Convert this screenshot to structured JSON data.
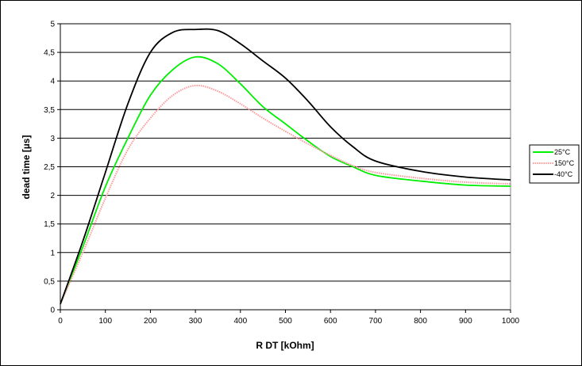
{
  "chart_data": {
    "type": "line",
    "title": "",
    "xlabel": "R DT [kOhm]",
    "ylabel": "dead time [µs]",
    "xlim": [
      0,
      1000
    ],
    "ylim": [
      0,
      5
    ],
    "x_ticks": [
      "0",
      "100",
      "200",
      "300",
      "400",
      "500",
      "600",
      "700",
      "800",
      "900",
      "1000"
    ],
    "y_ticks": [
      "0",
      "0,5",
      "1",
      "1,5",
      "2",
      "2,5",
      "3",
      "3,5",
      "4",
      "4,5",
      "5"
    ],
    "grid": "horizontal",
    "legend_position": "right",
    "series": [
      {
        "name": "25°C",
        "color": "#00ee00",
        "style": "solid",
        "x": [
          0,
          50,
          100,
          150,
          200,
          250,
          300,
          350,
          400,
          450,
          500,
          550,
          600,
          650,
          700,
          800,
          900,
          1000
        ],
        "y": [
          0.1,
          1.1,
          2.15,
          3.0,
          3.75,
          4.2,
          4.42,
          4.3,
          3.95,
          3.55,
          3.25,
          2.95,
          2.68,
          2.5,
          2.35,
          2.25,
          2.18,
          2.16
        ]
      },
      {
        "name": "150°C",
        "color": "#ff9999",
        "style": "dotted",
        "x": [
          0,
          50,
          100,
          150,
          200,
          250,
          300,
          350,
          400,
          450,
          500,
          550,
          600,
          650,
          700,
          800,
          900,
          1000
        ],
        "y": [
          0.1,
          1.0,
          1.95,
          2.8,
          3.35,
          3.75,
          3.92,
          3.82,
          3.6,
          3.35,
          3.12,
          2.9,
          2.7,
          2.52,
          2.4,
          2.3,
          2.23,
          2.2
        ]
      },
      {
        "name": "-40°C",
        "color": "#000000",
        "style": "solid",
        "x": [
          0,
          50,
          100,
          150,
          200,
          250,
          300,
          350,
          400,
          450,
          500,
          550,
          600,
          650,
          700,
          800,
          900,
          1000
        ],
        "y": [
          0.1,
          1.2,
          2.4,
          3.6,
          4.5,
          4.85,
          4.9,
          4.88,
          4.65,
          4.35,
          4.05,
          3.65,
          3.2,
          2.85,
          2.6,
          2.42,
          2.32,
          2.27
        ]
      }
    ]
  }
}
